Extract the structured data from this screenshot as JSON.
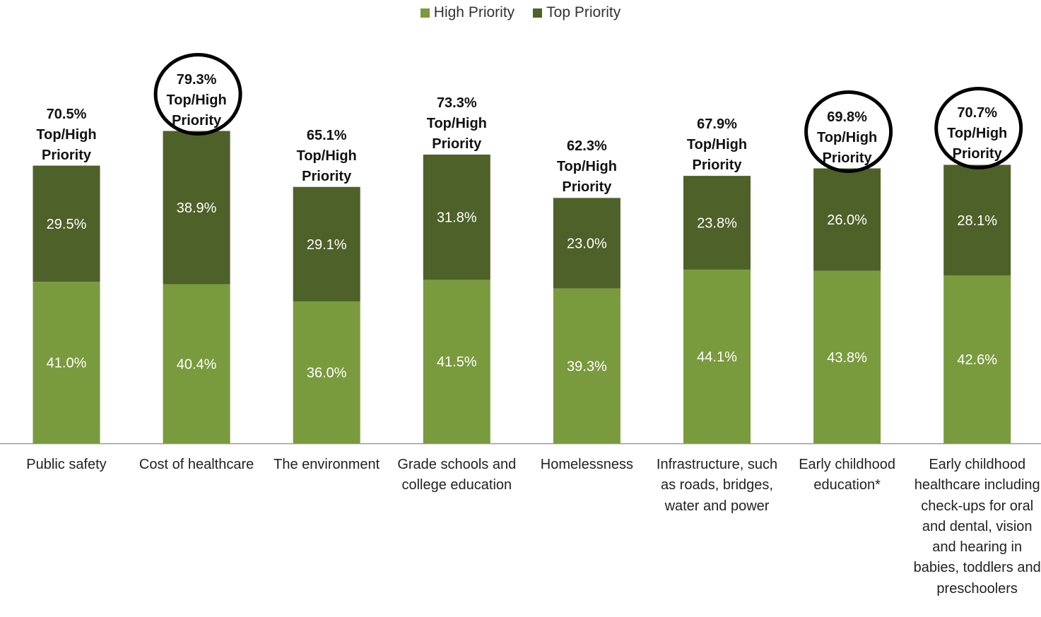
{
  "legend": {
    "high_label": "High Priority",
    "top_label": "Top Priority"
  },
  "colors": {
    "high": "#7a9a3e",
    "top": "#4e6128",
    "circle": "#000000"
  },
  "chart_data": {
    "type": "bar",
    "stacked": true,
    "categories": [
      "Public safety",
      "Cost of healthcare",
      "The environment",
      "Grade schools and college education",
      "Homelessness",
      "Infrastructure, such as roads, bridges, water and power",
      "Early childhood education*",
      "Early childhood healthcare including check-ups for oral and dental, vision and hearing in babies, toddlers and preschoolers"
    ],
    "series": [
      {
        "name": "High Priority",
        "values": [
          41.0,
          40.4,
          36.0,
          41.5,
          39.3,
          44.1,
          43.8,
          42.6
        ],
        "labels": [
          "41.0%",
          "40.4%",
          "36.0%",
          "41.5%",
          "39.3%",
          "44.1%",
          "43.8%",
          "42.6%"
        ]
      },
      {
        "name": "Top Priority",
        "values": [
          29.5,
          38.9,
          29.1,
          31.8,
          23.0,
          23.8,
          26.0,
          28.1
        ],
        "labels": [
          "29.5%",
          "38.9%",
          "29.1%",
          "31.8%",
          "23.0%",
          "23.8%",
          "26.0%",
          "28.1%"
        ]
      }
    ],
    "totals": [
      "70.5%",
      "79.3%",
      "65.1%",
      "73.3%",
      "62.3%",
      "67.9%",
      "69.8%",
      "70.7%"
    ],
    "total_suffix": "Top/High Priority",
    "circled": [
      false,
      true,
      false,
      false,
      false,
      false,
      true,
      true
    ],
    "ylim": [
      0,
      100
    ],
    "legend_position": "top"
  }
}
